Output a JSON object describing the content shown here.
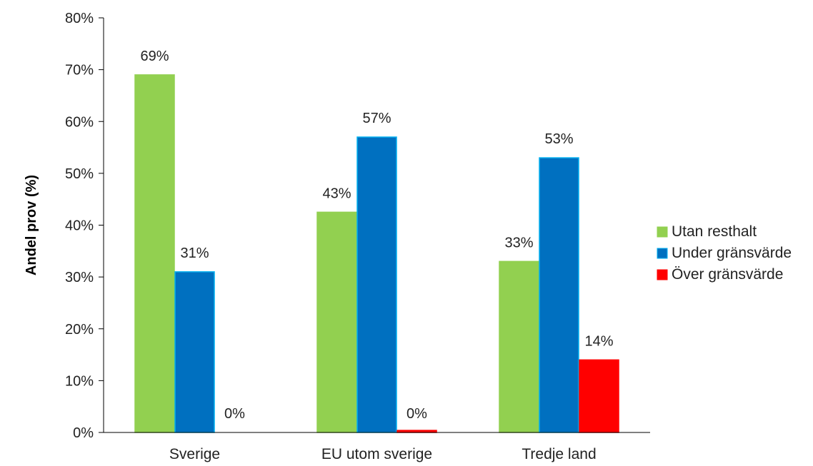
{
  "chart_data": {
    "type": "bar",
    "ylabel": "Andel prov (%)",
    "ylim": [
      0,
      80
    ],
    "y_ticks": [
      0,
      10,
      20,
      30,
      40,
      50,
      60,
      70,
      80
    ],
    "y_tick_suffix": "%",
    "grid": false,
    "legend_position": "right",
    "categories": [
      "Sverige",
      "EU utom sverige",
      "Tredje land"
    ],
    "series": [
      {
        "name": "Utan resthalt",
        "color": "#92d050",
        "border": "#92d050",
        "values": [
          69,
          42.5,
          33
        ],
        "labels": [
          "69%",
          "43%",
          "33%"
        ]
      },
      {
        "name": "Under gränsvärde",
        "color": "#0070c0",
        "border": "#00b0f0",
        "values": [
          31,
          57,
          53
        ],
        "labels": [
          "31%",
          "57%",
          "53%"
        ]
      },
      {
        "name": "Över gränsvärde",
        "color": "#ff0000",
        "border": "#ff0000",
        "values": [
          0,
          0.4,
          14
        ],
        "labels": [
          "0%",
          "0%",
          "14%"
        ]
      }
    ]
  }
}
